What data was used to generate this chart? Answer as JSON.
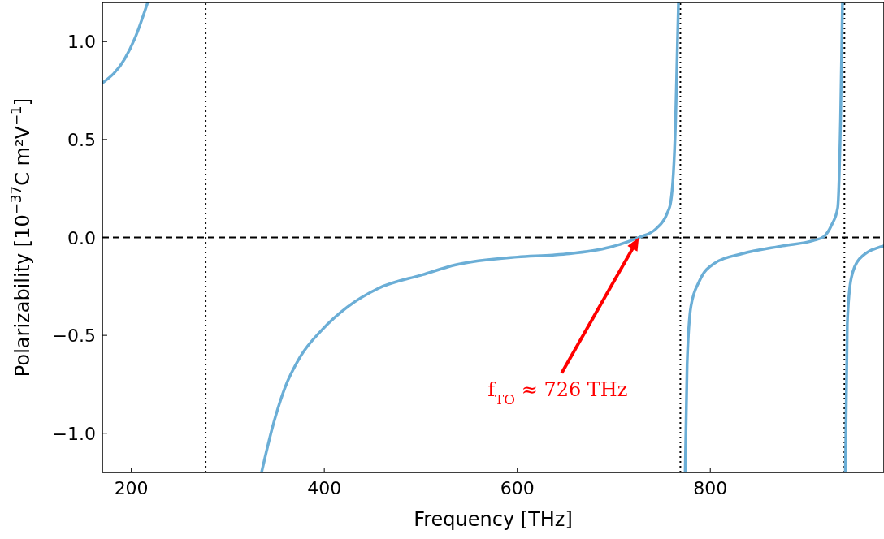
{
  "chart_data": {
    "type": "line",
    "xlabel": "Frequency [THz]",
    "ylabel": "Polarizability [10$^{−37}$C m²V$^{−1}$]",
    "xlim": [
      170,
      980
    ],
    "ylim": [
      -1.2,
      1.2
    ],
    "xticks": [
      200,
      400,
      600,
      800
    ],
    "yticks": [
      {
        "value": -1,
        "label": "−1.0"
      },
      {
        "value": -0.5,
        "label": "−0.5"
      },
      {
        "value": 0,
        "label": "0.0"
      },
      {
        "value": 0.5,
        "label": "0.5"
      },
      {
        "value": 1,
        "label": "1.0"
      }
    ],
    "grid": false,
    "marker": "none",
    "line_style": "solid",
    "series": [
      {
        "color": "#6baed6",
        "x": [
          170.5,
          193,
          204,
          217
        ],
        "values": [
          0.79,
          0.91,
          1.02,
          1.2
        ]
      },
      {
        "color": "#6baed6",
        "x": [
          335,
          346,
          359,
          375,
          398,
          424,
          456,
          502,
          536,
          600,
          637,
          654,
          696,
          726,
          744,
          755,
          759,
          764,
          766,
          767
        ],
        "values": [
          -1.2,
          -0.975,
          -0.77,
          -0.61,
          -0.47,
          -0.355,
          -0.26,
          -0.19,
          -0.14,
          -0.1,
          -0.09,
          -0.083,
          -0.05,
          0,
          0.045,
          0.12,
          0.18,
          0.59,
          1.0,
          1.2
        ]
      },
      {
        "color": "#6baed6",
        "x": [
          774,
          776,
          780,
          789,
          805,
          833,
          875,
          906.5,
          917.5,
          926,
          932,
          935,
          937
        ],
        "values": [
          -1.2,
          -0.65,
          -0.35,
          -0.22,
          -0.13,
          -0.083,
          -0.043,
          -0.016,
          0.004,
          0.066,
          0.15,
          0.6,
          1.2
        ]
      },
      {
        "color": "#6baed6",
        "x": [
          940,
          942,
          946,
          954.5,
          980
        ],
        "values": [
          -1.2,
          -0.44,
          -0.21,
          -0.11,
          -0.043
        ]
      }
    ],
    "ref_lines": [
      {
        "axis": "y",
        "value": 0,
        "color": "#000000",
        "line_style": "dashed"
      },
      {
        "axis": "x",
        "value": 277,
        "color": "#000000",
        "line_style": "dotted"
      },
      {
        "axis": "x",
        "value": 769,
        "color": "#000000",
        "line_style": "dotted"
      },
      {
        "axis": "x",
        "value": 939,
        "color": "#000000",
        "line_style": "dotted"
      }
    ],
    "annotations": [
      "f$_{TO}$ ≈ 726 THz"
    ]
  }
}
